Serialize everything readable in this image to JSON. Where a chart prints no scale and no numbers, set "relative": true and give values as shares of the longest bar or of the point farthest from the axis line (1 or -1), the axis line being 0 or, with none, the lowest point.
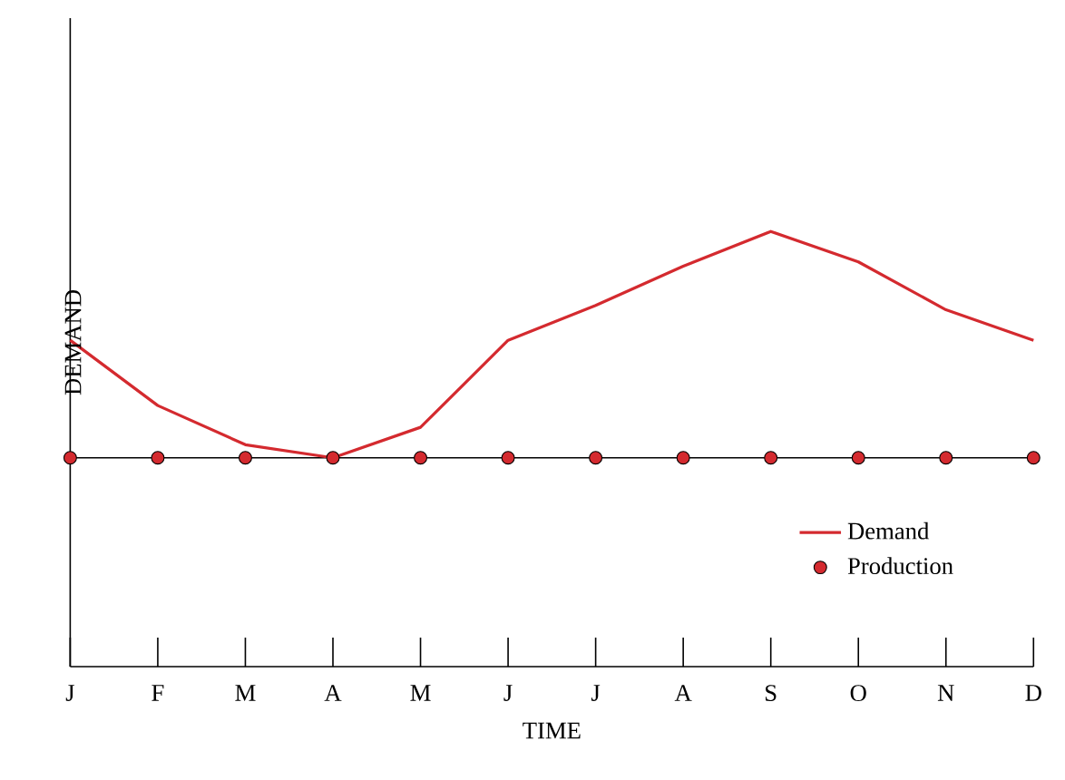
{
  "chart_data": {
    "type": "line",
    "relative": true,
    "xlabel": "TIME",
    "ylabel": "DEMAND",
    "categories": [
      "J",
      "F",
      "M",
      "A",
      "M",
      "J",
      "J",
      "A",
      "S",
      "O",
      "N",
      "D"
    ],
    "series": [
      {
        "name": "Demand",
        "color": "#d42a2f",
        "values": [
          0.75,
          0.6,
          0.51,
          0.48,
          0.55,
          0.75,
          0.83,
          0.92,
          1,
          0.93,
          0.82,
          0.75
        ]
      },
      {
        "name": "Production",
        "type": "scatter",
        "marker": "circle",
        "color": "#d42a2f",
        "values": [
          0.48,
          0.48,
          0.48,
          0.48,
          0.48,
          0.48,
          0.48,
          0.48,
          0.48,
          0.48,
          0.48,
          0.48
        ]
      }
    ],
    "ref_lines": [
      {
        "axis": "y",
        "value": 0.48,
        "color": "#000000"
      }
    ],
    "legend": "right"
  }
}
